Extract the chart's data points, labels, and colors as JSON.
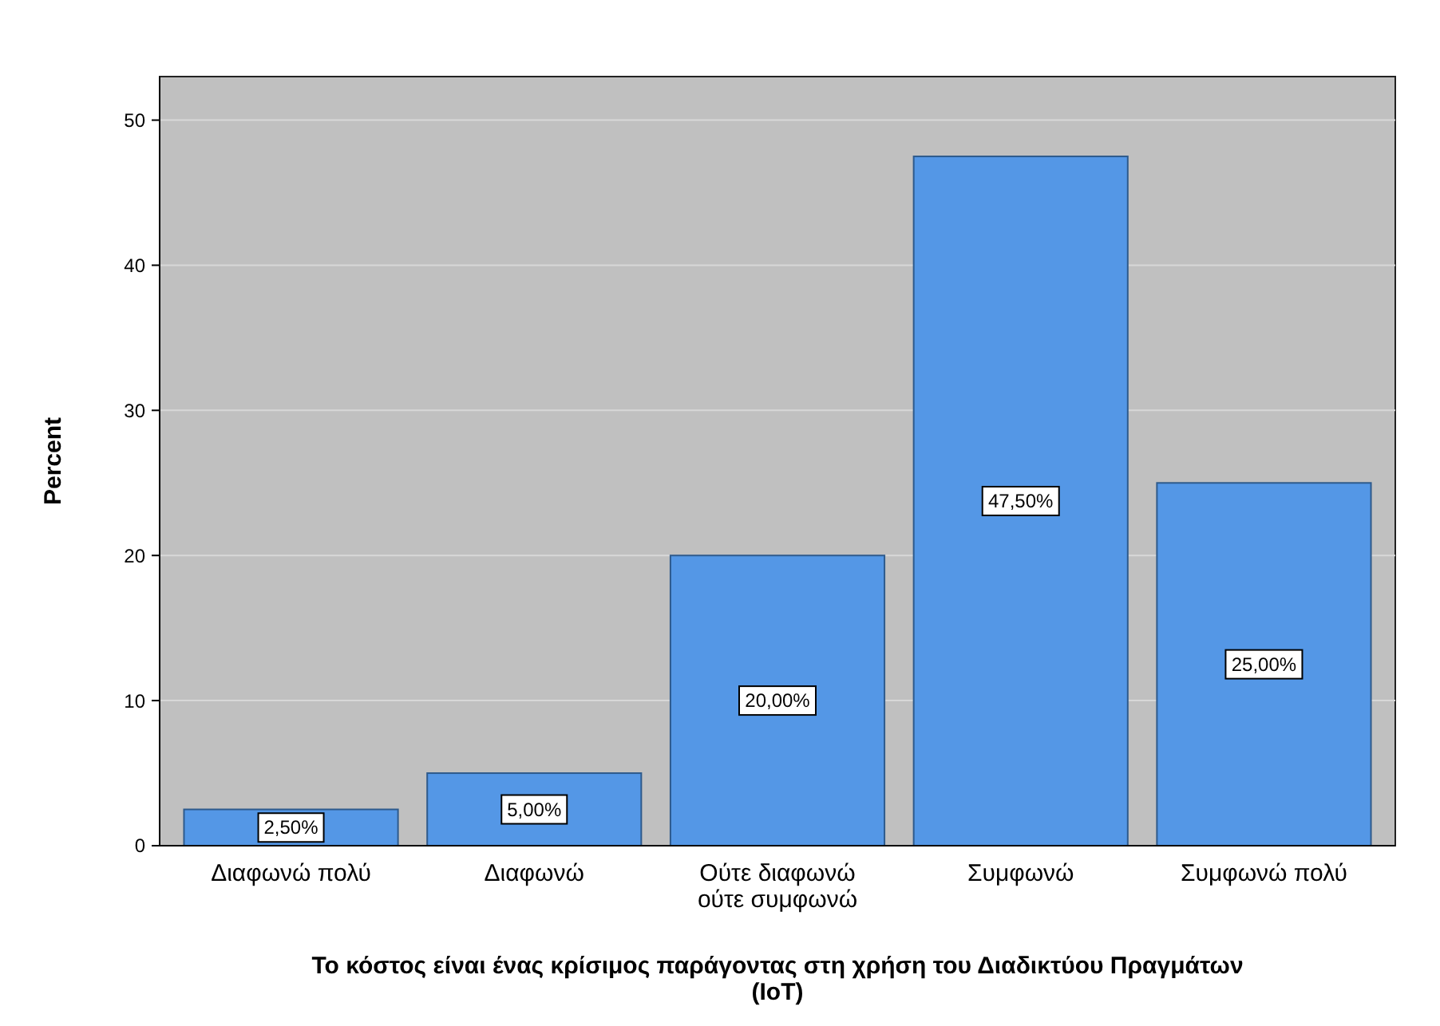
{
  "chart_data": {
    "type": "bar",
    "xlabel": "Το κόστος είναι ένας κρίσιμος παράγοντας στη χρήση του Διαδικτύου Πραγμάτων (IoT)",
    "ylabel": "Percent",
    "categories": [
      "Διαφωνώ πολύ",
      "Διαφωνώ",
      "Ούτε διαφωνώ ούτε συμφωνώ",
      "Συμφωνώ",
      "Συμφωνώ πολύ"
    ],
    "values": [
      2.5,
      5,
      20,
      47.5,
      25
    ],
    "value_labels": [
      "2,50%",
      "5,00%",
      "20,00%",
      "47,50%",
      "25,00%"
    ],
    "color": "#5497e6",
    "ylim": [
      0,
      53
    ],
    "yticks": [
      0,
      10,
      20,
      30,
      40,
      50
    ],
    "grid": "y"
  }
}
